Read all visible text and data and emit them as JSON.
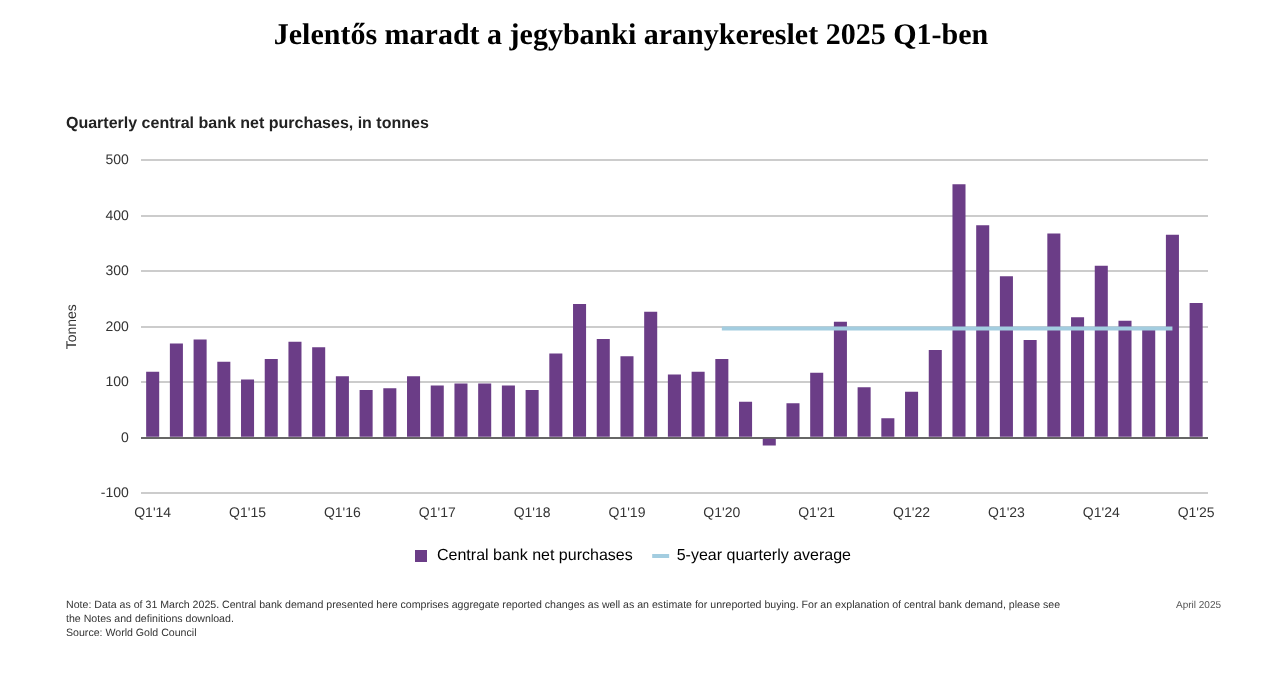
{
  "chart_data": {
    "type": "bar",
    "title": "Jelentős maradt a jegybanki aranykereslet 2025 Q1-ben",
    "subtitle": "Quarterly central bank net purchases, in tonnes",
    "ylabel": "Tonnes",
    "categories": [
      "Q1'14",
      null,
      null,
      null,
      "Q1'15",
      null,
      null,
      null,
      "Q1'16",
      null,
      null,
      null,
      "Q1'17",
      null,
      null,
      null,
      "Q1'18",
      null,
      null,
      null,
      "Q1'19",
      null,
      null,
      null,
      "Q1'20",
      null,
      null,
      null,
      "Q1'21",
      null,
      null,
      null,
      "Q1'22",
      null,
      null,
      null,
      "Q1'23",
      null,
      null,
      null,
      "Q1'24",
      null,
      null,
      null,
      "Q1'25"
    ],
    "series": [
      {
        "name": "Central bank net purchases",
        "color": "#6b3d87",
        "values": [
          119,
          170,
          177,
          137,
          105,
          142,
          173,
          163,
          111,
          86,
          89,
          111,
          94,
          98,
          98,
          94,
          86,
          152,
          241,
          178,
          147,
          227,
          114,
          119,
          142,
          65,
          -14,
          62,
          117,
          209,
          91,
          35,
          83,
          158,
          457,
          383,
          291,
          176,
          368,
          217,
          310,
          211,
          198,
          366,
          243
        ]
      },
      {
        "name": "5-year quarterly average",
        "type": "line",
        "color": "#a3cde0",
        "values": [
          null,
          null,
          null,
          null,
          null,
          null,
          null,
          null,
          null,
          null,
          null,
          null,
          null,
          null,
          null,
          null,
          null,
          null,
          null,
          null,
          null,
          null,
          null,
          null,
          197,
          197,
          197,
          197,
          197,
          197,
          197,
          197,
          197,
          197,
          197,
          197,
          197,
          197,
          197,
          197,
          197,
          197,
          197,
          197,
          null
        ]
      }
    ],
    "ylim": [
      -100,
      500
    ],
    "yticks": [
      -100,
      0,
      100,
      200,
      300,
      400,
      500
    ],
    "grid": "y",
    "legend": "bottom",
    "marker": "none",
    "annotations": [
      "Note: Data as of 31 March 2025. Central bank demand presented here comprises aggregate reported changes as well as an estimate for unreported buying. For an explanation of central bank demand, please see the Notes and definitions download.",
      "Source: World Gold Council",
      "April 2025"
    ]
  }
}
